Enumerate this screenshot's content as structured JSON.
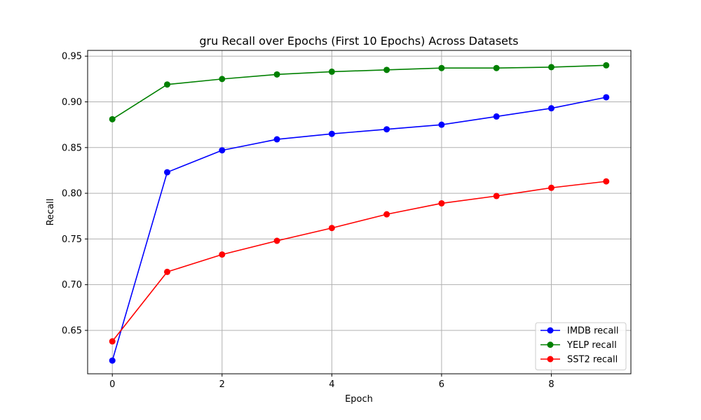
{
  "chart_data": {
    "type": "line",
    "title": "gru Recall over Epochs (First 10 Epochs) Across Datasets",
    "xlabel": "Epoch",
    "ylabel": "Recall",
    "x": [
      0,
      1,
      2,
      3,
      4,
      5,
      6,
      7,
      8,
      9
    ],
    "xlim": [
      -0.45,
      9.45
    ],
    "ylim": [
      0.6025,
      0.9563
    ],
    "xticks": [
      0,
      2,
      4,
      6,
      8
    ],
    "xtick_labels": [
      "0",
      "2",
      "4",
      "6",
      "8"
    ],
    "yticks": [
      0.65,
      0.7,
      0.75,
      0.8,
      0.85,
      0.9,
      0.95
    ],
    "ytick_labels": [
      "0.65",
      "0.70",
      "0.75",
      "0.80",
      "0.85",
      "0.90",
      "0.95"
    ],
    "grid": true,
    "legend_position": "lower-right",
    "series": [
      {
        "name": "IMDB recall",
        "color": "#0000ff",
        "values": [
          0.617,
          0.823,
          0.847,
          0.859,
          0.865,
          0.87,
          0.875,
          0.884,
          0.893,
          0.905
        ]
      },
      {
        "name": "YELP recall",
        "color": "#008000",
        "values": [
          0.881,
          0.919,
          0.925,
          0.93,
          0.933,
          0.935,
          0.937,
          0.937,
          0.938,
          0.94
        ]
      },
      {
        "name": "SST2 recall",
        "color": "#ff0000",
        "values": [
          0.638,
          0.714,
          0.733,
          0.748,
          0.762,
          0.777,
          0.789,
          0.797,
          0.806,
          0.813
        ]
      }
    ]
  }
}
